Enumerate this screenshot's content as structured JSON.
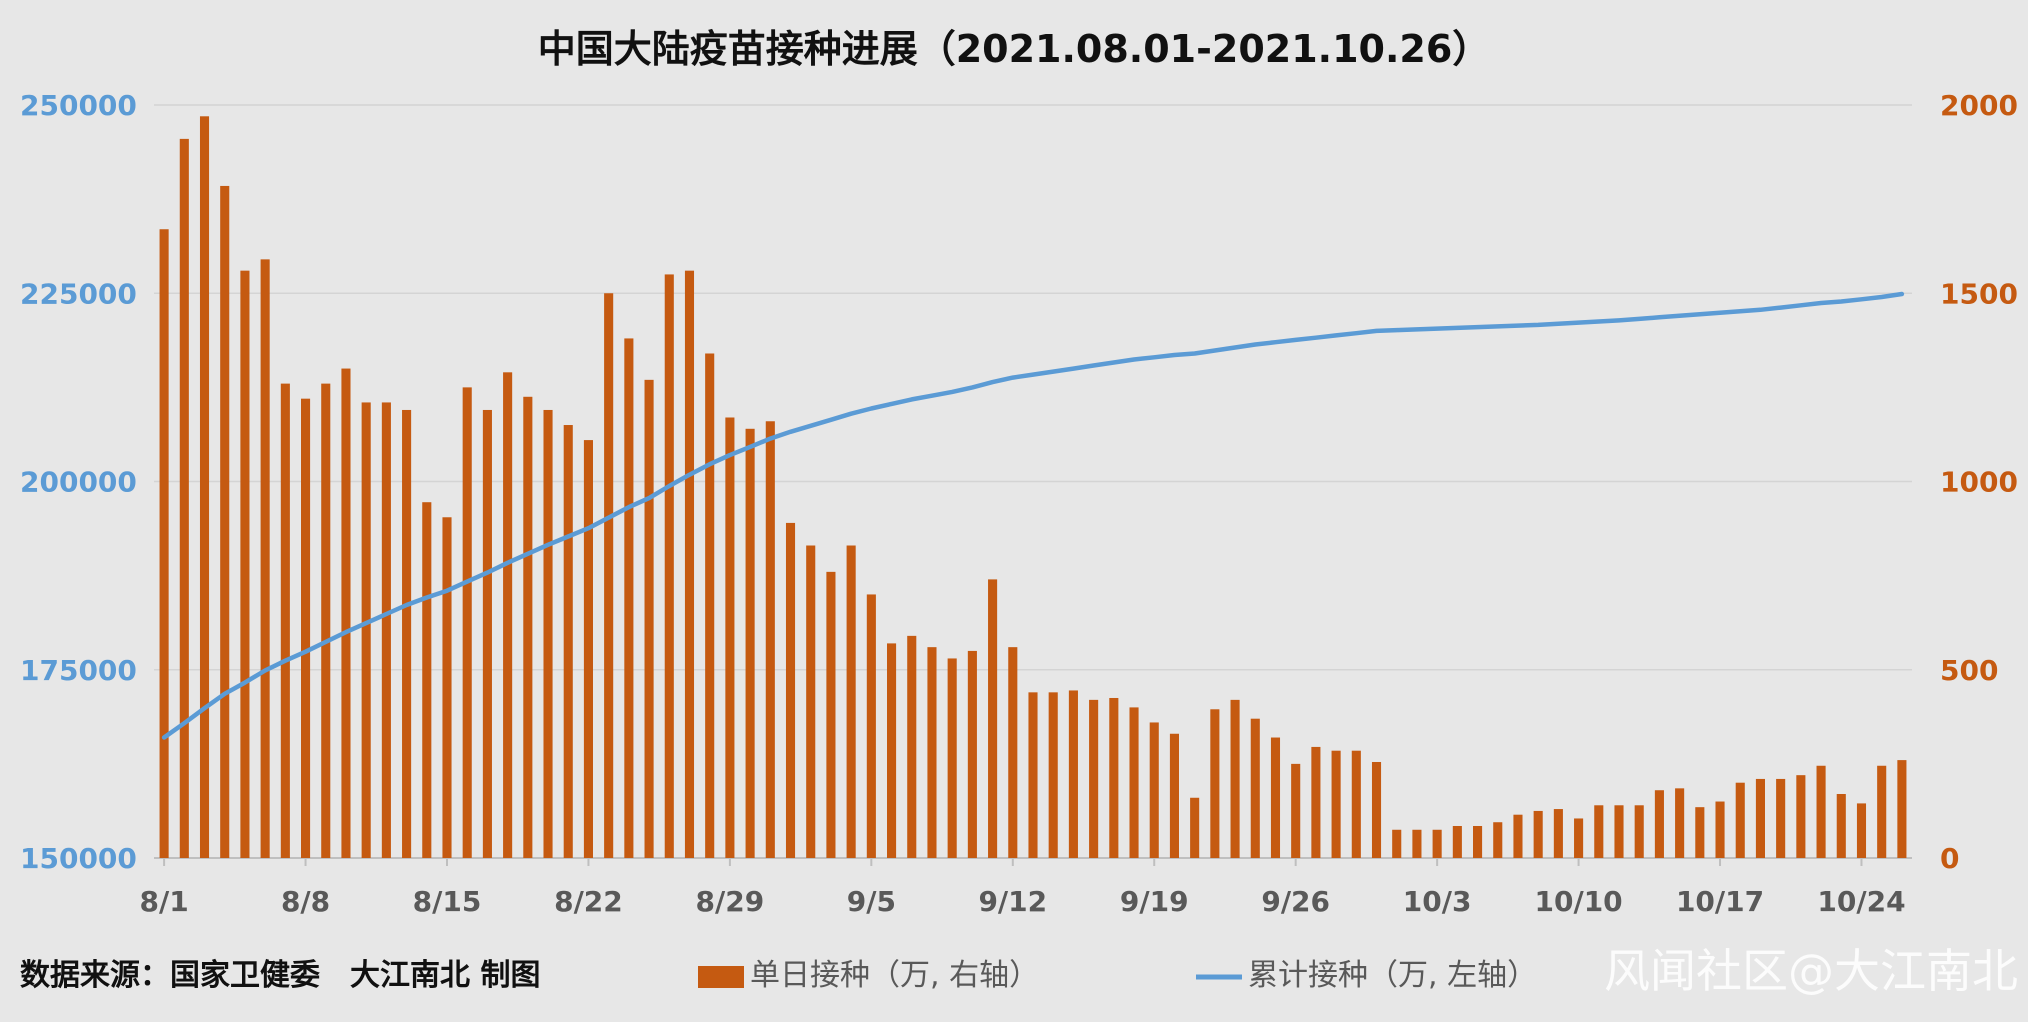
{
  "chart_data": {
    "type": "bar+line",
    "title": "中国大陆疫苗接种进展（2021.08.01-2021.10.26）",
    "x_tick_labels": [
      "8/1",
      "8/8",
      "8/15",
      "8/22",
      "8/29",
      "9/5",
      "9/12",
      "9/19",
      "9/26",
      "10/3",
      "10/10",
      "10/17",
      "10/24"
    ],
    "y_left": {
      "min": 150000,
      "max": 250000,
      "ticks": [
        "150000",
        "175000",
        "200000",
        "225000",
        "250000"
      ],
      "color": "#5b9bd5"
    },
    "y_right": {
      "min": 0,
      "max": 2000,
      "ticks": [
        "0",
        "500",
        "1000",
        "1500",
        "2000"
      ],
      "color": "#c55a11"
    },
    "grid": true,
    "legend_position": "bottom",
    "series": [
      {
        "name": "单日接种（万, 右轴）",
        "type": "bar",
        "axis": "right",
        "color": "#c55a11",
        "values": [
          1670,
          1910,
          1970,
          1785,
          1560,
          1590,
          1260,
          1220,
          1260,
          1300,
          1210,
          1210,
          1190,
          945,
          905,
          1250,
          1190,
          1290,
          1225,
          1190,
          1150,
          1110,
          1500,
          1380,
          1270,
          1550,
          1560,
          1340,
          1170,
          1140,
          1160,
          890,
          830,
          760,
          830,
          700,
          570,
          590,
          560,
          530,
          550,
          740,
          560,
          440,
          440,
          445,
          420,
          425,
          400,
          360,
          330,
          160,
          395,
          420,
          370,
          320,
          250,
          295,
          285,
          285,
          255,
          75,
          75,
          75,
          85,
          85,
          95,
          115,
          125,
          130,
          105,
          140,
          140,
          140,
          180,
          185,
          135,
          150,
          200,
          210,
          210,
          220,
          245,
          170,
          145,
          245,
          260
        ]
      },
      {
        "name": "累计接种（万, 左轴）",
        "type": "line",
        "axis": "left",
        "color": "#5b9bd5",
        "values": [
          166000,
          167900,
          169900,
          171800,
          173300,
          174900,
          176200,
          177400,
          178700,
          180000,
          181200,
          182400,
          183600,
          184600,
          185500,
          186700,
          187900,
          189200,
          190400,
          191600,
          192700,
          193800,
          195200,
          196600,
          197800,
          199400,
          200900,
          202300,
          203500,
          204600,
          205700,
          206600,
          207400,
          208200,
          209000,
          209700,
          210300,
          210900,
          211400,
          211900,
          212500,
          213200,
          213800,
          214200,
          214600,
          215000,
          215400,
          215800,
          216200,
          216500,
          216800,
          217000,
          217400,
          217800,
          218200,
          218500,
          218800,
          219100,
          219400,
          219700,
          220000,
          220100,
          220200,
          220300,
          220400,
          220500,
          220600,
          220700,
          220800,
          220950,
          221100,
          221250,
          221400,
          221600,
          221800,
          222000,
          222200,
          222400,
          222600,
          222800,
          223100,
          223400,
          223700,
          223900,
          224200,
          224500,
          224900
        ]
      }
    ]
  },
  "legend": {
    "bar_label": "单日接种（万, 右轴）",
    "line_label": "累计接种（万, 左轴）"
  },
  "footer": {
    "source": "数据来源：国家卫健委　大江南北 制图",
    "watermark": "风闻社区@大江南北"
  }
}
